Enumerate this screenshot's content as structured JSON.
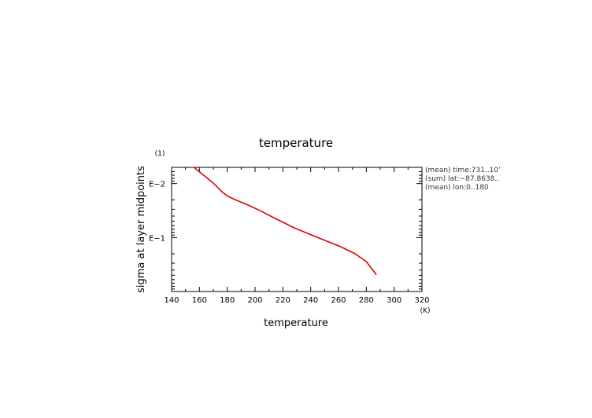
{
  "chart_data": {
    "type": "line",
    "title": "temperature",
    "xlabel": "temperature",
    "ylabel": "sigma at layer midpoints",
    "x_unit": "(K)",
    "y_unit": "(1)",
    "xlim": [
      140,
      320
    ],
    "x_ticks": [
      140,
      160,
      180,
      200,
      220,
      240,
      260,
      280,
      300,
      320
    ],
    "y_scale": "log",
    "ylim": [
      0.005,
      1
    ],
    "y_reversed": true,
    "y_tick_labels": [
      "E−2",
      "E−1"
    ],
    "grid": false,
    "series": [
      {
        "color": "#e00000",
        "x": [
          156,
          163,
          170,
          176,
          180,
          187,
          195,
          205,
          215,
          228,
          245,
          262,
          272,
          280,
          287
        ],
        "y": [
          0.005,
          0.007,
          0.0098,
          0.014,
          0.017,
          0.0205,
          0.025,
          0.033,
          0.045,
          0.066,
          0.1,
          0.15,
          0.2,
          0.28,
          0.48
        ]
      }
    ],
    "annotations": [
      "(mean) time:731..10’",
      "(sum) lat:−87.8638..",
      "(mean) lon:0..180"
    ]
  }
}
